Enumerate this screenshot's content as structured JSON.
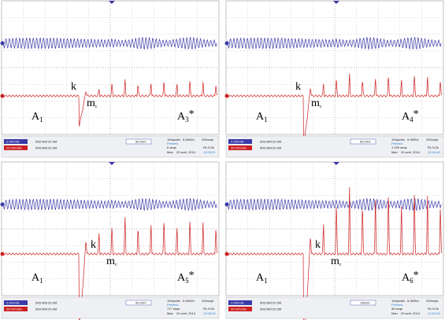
{
  "panels": [
    {
      "k": "k",
      "m": {
        "main": "m",
        "sub": "c"
      },
      "left": {
        "main": "A",
        "sub": "1"
      },
      "right": {
        "main": "A",
        "sub": "3",
        "sup": "*"
      },
      "status": {
        "ch1": "2.00V/div",
        "ch1_info": "50Ω BW:20.0M",
        "ch2": "20.0mV/div",
        "ch2_info": "50Ω BW:20.0M",
        "trigger": "50.0mV",
        "timebase": "100µs/div",
        "rate": "5.0MS/s",
        "res": "200ns/pt",
        "mode": "Preview",
        "acqs": "6 acqs",
        "rl": "RL:5.0k",
        "man": "Man",
        "date": "20 avril, 2014",
        "time": "12:00:01"
      }
    },
    {
      "k": "k",
      "m": {
        "main": "m",
        "sub": "c"
      },
      "left": {
        "main": "A",
        "sub": "1"
      },
      "right": {
        "main": "A",
        "sub": "4",
        "sup": "*"
      },
      "status": {
        "ch1": "2.00V/div",
        "ch1_info": "50Ω BW:20.0M",
        "ch2": "20.0mV/div",
        "ch2_info": "50Ω BW:20.0M",
        "trigger": "50.0mV",
        "timebase": "100µs/div",
        "rate": "5.0MS/s",
        "res": "200ns/pt",
        "mode": "Preview",
        "acqs": "1 033 acqs",
        "rl": "RL:5.0k",
        "man": "Man",
        "date": "20 avril, 2014",
        "time": "12:06:43"
      }
    },
    {
      "k": "k",
      "m": {
        "main": "m",
        "sub": "c"
      },
      "left": {
        "main": "A",
        "sub": "1"
      },
      "right": {
        "main": "A",
        "sub": "5",
        "sup": "*"
      },
      "status": {
        "ch1": "2.00V/div",
        "ch1_info": "50Ω BW:20.0M",
        "ch2": "20.0mV/div",
        "ch2_info": "50Ω BW:20.0M",
        "trigger": "50.0mV",
        "timebase": "100µs/div",
        "rate": "5.0MS/s",
        "res": "200ns/pt",
        "mode": "Preview",
        "acqs": "717 acqs",
        "rl": "RL:5.0k",
        "man": "Man",
        "date": "20 avril, 2014",
        "time": "12:08:32"
      }
    },
    {
      "k": "k",
      "m": {
        "main": "m",
        "sub": "c"
      },
      "left": {
        "main": "A",
        "sub": "1"
      },
      "right": {
        "main": "A",
        "sub": "6",
        "sup": "*"
      },
      "status": {
        "ch1": "2.00V/div",
        "ch1_info": "50Ω BW:20.0M",
        "ch2": "20.0mV/div",
        "ch2_info": "50Ω BW:20.0M",
        "trigger": "156mV",
        "timebase": "100µs/div",
        "rate": "5.0MS/s",
        "res": "200ns/pt",
        "mode": "Preview",
        "acqs": "58 acqs",
        "rl": "RL:5.0k",
        "man": "Man",
        "date": "20 avril, 2014",
        "time": "12:10:15"
      }
    }
  ]
}
